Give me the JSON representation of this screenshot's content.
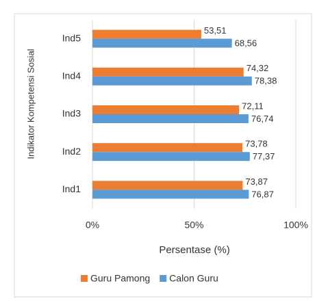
{
  "chart_data": {
    "type": "hbar",
    "y_label": "Indikator Kompetensi Sosial",
    "x_label": "Persentase (%)",
    "categories": [
      "Ind1",
      "Ind2",
      "Ind3",
      "Ind4",
      "Ind5"
    ],
    "series": [
      {
        "name": "Guru Pamong",
        "color": "#ed7d31",
        "values": [
          73.87,
          73.78,
          72.11,
          74.32,
          53.51
        ],
        "value_labels": [
          "73,87",
          "73,78",
          "72,11",
          "74,32",
          "53,51"
        ]
      },
      {
        "name": "Calon Guru",
        "color": "#5b9bd5",
        "values": [
          76.87,
          77.37,
          76.74,
          78.38,
          68.56
        ],
        "value_labels": [
          "76,87",
          "77,37",
          "76,74",
          "78,38",
          "68,56"
        ]
      }
    ],
    "xlim": [
      0,
      100
    ],
    "xticks": [
      {
        "value": 0,
        "label": "0%"
      },
      {
        "value": 50,
        "label": "50%"
      },
      {
        "value": 100,
        "label": "100%"
      }
    ],
    "grid": true,
    "legend": "bottom"
  }
}
